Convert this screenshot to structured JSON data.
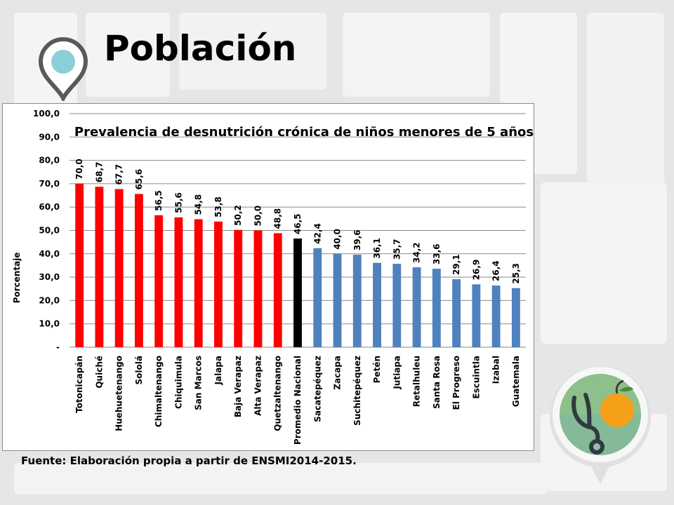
{
  "slide": {
    "title": "Población",
    "source": "Fuente: Elaboración propia a partir de ENSMI2014-2015."
  },
  "icons": {
    "pin": "location-pin-icon",
    "badge": "stethoscope-fruit-icon"
  },
  "colors": {
    "above_national": "#ff0000",
    "national": "#000000",
    "below_national": "#4f81bd",
    "accent_teal": "#8ccfd6"
  },
  "chart_data": {
    "type": "bar",
    "title": "Prevalencia de desnutrición crónica de niños menores de 5 años",
    "xlabel": "",
    "ylabel": "Porcentaje",
    "ylim": [
      0,
      100
    ],
    "yticks": [
      "-",
      "10,0",
      "20,0",
      "30,0",
      "40,0",
      "50,0",
      "60,0",
      "70,0",
      "80,0",
      "90,0",
      "100,0"
    ],
    "grid": true,
    "categories": [
      "Totonicapán",
      "Quiché",
      "Huehuetenango",
      "Sololá",
      "Chimaltenango",
      "Chiquimula",
      "San Marcos",
      "Jalapa",
      "Baja Verapaz",
      "Alta Verapaz",
      "Quetzaltenango",
      "Promedio Nacional",
      "Sacatepéquez",
      "Zacapa",
      "Suchitepéquez",
      "Petén",
      "Jutiapa",
      "Retalhuleu",
      "Santa Rosa",
      "El Progreso",
      "Escuintla",
      "Izabal",
      "Guatemala"
    ],
    "values": [
      70.0,
      68.7,
      67.7,
      65.6,
      56.5,
      55.6,
      54.8,
      53.8,
      50.2,
      50.0,
      48.8,
      46.5,
      42.4,
      40.0,
      39.6,
      36.1,
      35.7,
      34.2,
      33.6,
      29.1,
      26.9,
      26.4,
      25.3
    ],
    "labels": [
      "70,0",
      "68,7",
      "67,7",
      "65,6",
      "56,5",
      "55,6",
      "54,8",
      "53,8",
      "50,2",
      "50,0",
      "48,8",
      "46,5",
      "42,4",
      "40,0",
      "39,6",
      "36,1",
      "35,7",
      "34,2",
      "33,6",
      "29,1",
      "26,9",
      "26,4",
      "25,3"
    ],
    "bar_colors": [
      "red",
      "red",
      "red",
      "red",
      "red",
      "red",
      "red",
      "red",
      "red",
      "red",
      "red",
      "black",
      "blue",
      "blue",
      "blue",
      "blue",
      "blue",
      "blue",
      "blue",
      "blue",
      "blue",
      "blue",
      "blue"
    ]
  }
}
